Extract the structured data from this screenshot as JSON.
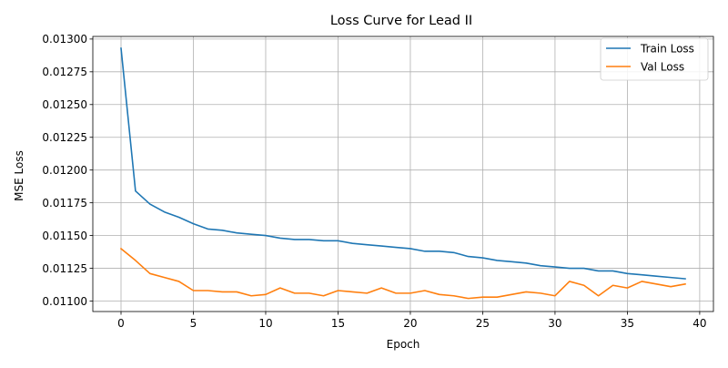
{
  "chart_data": {
    "type": "line",
    "title": "Loss Curve for Lead II",
    "xlabel": "Epoch",
    "ylabel": "MSE Loss",
    "xlim": [
      -1.95,
      40.95
    ],
    "ylim": [
      0.01092,
      0.01302
    ],
    "xticks": [
      0,
      5,
      10,
      15,
      20,
      25,
      30,
      35,
      40
    ],
    "xtick_labels": [
      "0",
      "5",
      "10",
      "15",
      "20",
      "25",
      "30",
      "35",
      "40"
    ],
    "yticks": [
      0.011,
      0.01125,
      0.0115,
      0.01175,
      0.012,
      0.01225,
      0.0125,
      0.01275,
      0.013
    ],
    "ytick_labels": [
      "0.01100",
      "0.01125",
      "0.01150",
      "0.01175",
      "0.01200",
      "0.01225",
      "0.01250",
      "0.01275",
      "0.01300"
    ],
    "grid": true,
    "legend_position": "top-right",
    "x": [
      0,
      1,
      2,
      3,
      4,
      5,
      6,
      7,
      8,
      9,
      10,
      11,
      12,
      13,
      14,
      15,
      16,
      17,
      18,
      19,
      20,
      21,
      22,
      23,
      24,
      25,
      26,
      27,
      28,
      29,
      30,
      31,
      32,
      33,
      34,
      35,
      36,
      37,
      38,
      39
    ],
    "series": [
      {
        "name": "Train Loss",
        "color": "#1f77b4",
        "values": [
          0.01293,
          0.01184,
          0.01174,
          0.01168,
          0.01164,
          0.01159,
          0.01155,
          0.01154,
          0.01152,
          0.01151,
          0.0115,
          0.01148,
          0.01147,
          0.01147,
          0.01146,
          0.01146,
          0.01144,
          0.01143,
          0.01142,
          0.01141,
          0.0114,
          0.01138,
          0.01138,
          0.01137,
          0.01134,
          0.01133,
          0.01131,
          0.0113,
          0.01129,
          0.01127,
          0.01126,
          0.01125,
          0.01125,
          0.01123,
          0.01123,
          0.01121,
          0.0112,
          0.01119,
          0.01118,
          0.01117
        ]
      },
      {
        "name": "Val Loss",
        "color": "#ff7f0e",
        "values": [
          0.0114,
          0.01131,
          0.01121,
          0.01118,
          0.01115,
          0.01108,
          0.01108,
          0.01107,
          0.01107,
          0.01104,
          0.01105,
          0.0111,
          0.01106,
          0.01106,
          0.01104,
          0.01108,
          0.01107,
          0.01106,
          0.0111,
          0.01106,
          0.01106,
          0.01108,
          0.01105,
          0.01104,
          0.01102,
          0.01103,
          0.01103,
          0.01105,
          0.01107,
          0.01106,
          0.01104,
          0.01115,
          0.01112,
          0.01104,
          0.01112,
          0.0111,
          0.01115,
          0.01113,
          0.01111,
          0.01113
        ]
      }
    ]
  }
}
